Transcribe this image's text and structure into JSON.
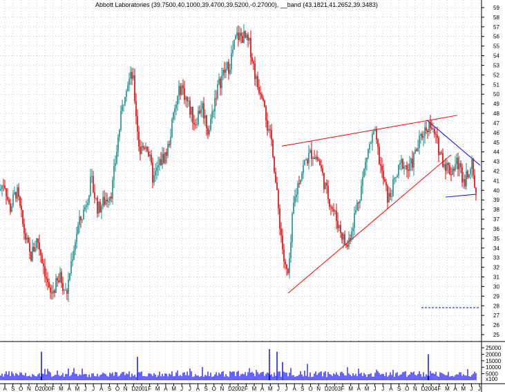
{
  "chart_data": {
    "type": "candlestick",
    "title": "Abbott Laboratories (39.7500,40.1000,39.4700,39.5200,-0.27000), __band (43.1821,41.2652,39.3483)",
    "ylim": [
      25,
      59
    ],
    "y_ticks": [
      25,
      26,
      27,
      28,
      29,
      30,
      31,
      32,
      33,
      34,
      35,
      36,
      37,
      38,
      39,
      40,
      41,
      42,
      43,
      44,
      45,
      46,
      47,
      48,
      49,
      50,
      51,
      52,
      53,
      54,
      55,
      56,
      57,
      58,
      59
    ],
    "volume_ticks": [
      "25000",
      "20000",
      "15000",
      "10000",
      "5000",
      "x100"
    ],
    "volume_tick_values": [
      25000,
      20000,
      15000,
      10000,
      5000
    ],
    "x_labels": [
      "A",
      "S",
      "O",
      "N",
      "D",
      "2000",
      "F",
      "M",
      "A",
      "M",
      "J",
      "J",
      "A",
      "S",
      "O",
      "N",
      "D",
      "2001",
      "F",
      "M",
      "A",
      "M",
      "J",
      "J",
      "A",
      "S",
      "O",
      "N",
      "D",
      "2002",
      "F",
      "M",
      "A",
      "M",
      "J",
      "J",
      "A",
      "S",
      "O",
      "N",
      "D",
      "2003",
      "F",
      "M",
      "A",
      "M",
      "J",
      "J",
      "A",
      "S",
      "O",
      "N",
      "D",
      "2004",
      "F",
      "M",
      "A",
      "M",
      "J",
      "J"
    ],
    "price_anchors": [
      [
        0,
        40
      ],
      [
        6,
        41
      ],
      [
        14,
        38
      ],
      [
        24,
        40
      ],
      [
        34,
        36
      ],
      [
        44,
        33
      ],
      [
        54,
        35
      ],
      [
        64,
        32
      ],
      [
        72,
        29
      ],
      [
        80,
        30
      ],
      [
        88,
        31
      ],
      [
        96,
        29
      ],
      [
        104,
        33
      ],
      [
        112,
        36
      ],
      [
        122,
        38
      ],
      [
        132,
        41
      ],
      [
        142,
        38
      ],
      [
        152,
        39
      ],
      [
        162,
        40
      ],
      [
        172,
        46
      ],
      [
        182,
        51
      ],
      [
        192,
        52
      ],
      [
        202,
        44
      ],
      [
        212,
        45
      ],
      [
        222,
        41
      ],
      [
        232,
        43
      ],
      [
        242,
        44
      ],
      [
        252,
        48
      ],
      [
        262,
        51
      ],
      [
        272,
        49
      ],
      [
        282,
        47
      ],
      [
        292,
        49
      ],
      [
        302,
        46
      ],
      [
        312,
        50
      ],
      [
        322,
        52
      ],
      [
        332,
        53
      ],
      [
        342,
        56
      ],
      [
        352,
        56
      ],
      [
        362,
        55
      ],
      [
        372,
        51
      ],
      [
        382,
        50
      ],
      [
        388,
        46
      ],
      [
        394,
        45
      ],
      [
        400,
        40
      ],
      [
        406,
        36
      ],
      [
        412,
        32
      ],
      [
        418,
        31
      ],
      [
        424,
        38
      ],
      [
        432,
        41
      ],
      [
        442,
        43
      ],
      [
        452,
        44
      ],
      [
        462,
        43
      ],
      [
        472,
        40
      ],
      [
        482,
        38
      ],
      [
        492,
        36
      ],
      [
        502,
        34
      ],
      [
        512,
        37
      ],
      [
        522,
        40
      ],
      [
        532,
        44
      ],
      [
        542,
        46
      ],
      [
        552,
        42
      ],
      [
        562,
        39
      ],
      [
        572,
        41
      ],
      [
        582,
        43
      ],
      [
        592,
        42
      ],
      [
        602,
        44
      ],
      [
        612,
        46
      ],
      [
        622,
        47
      ],
      [
        632,
        45
      ],
      [
        642,
        43
      ],
      [
        652,
        42
      ],
      [
        662,
        43
      ],
      [
        672,
        41
      ],
      [
        682,
        43
      ],
      [
        690,
        39.5
      ]
    ],
    "trendlines": [
      {
        "color": "#ff0000",
        "from": [
          408,
          44.6
        ],
        "to": [
          662,
          47.8
        ]
      },
      {
        "color": "#ff0000",
        "from": [
          417,
          29.3
        ],
        "to": [
          653,
          43.7
        ]
      },
      {
        "color": "#0000ff",
        "from": [
          618,
          47.3
        ],
        "to": [
          695,
          42.6
        ]
      },
      {
        "color": "#0000ff",
        "from": [
          645,
          39.3
        ],
        "to": [
          690,
          39.6
        ]
      }
    ],
    "band_level": 27.8,
    "volume_spikes": [
      [
        60,
        22000
      ],
      [
        199,
        18000
      ],
      [
        390,
        24000
      ],
      [
        401,
        22000
      ],
      [
        409,
        14000
      ],
      [
        620,
        20000
      ]
    ]
  },
  "colors": {
    "up_candle": "#1a8c8c",
    "down_candle": "#e00000",
    "volume": "#0000ff",
    "grid": "#aaaaaa",
    "upper_trend": "#ff0000",
    "wedge": "#0000ff",
    "band_line": "#0000ff"
  }
}
